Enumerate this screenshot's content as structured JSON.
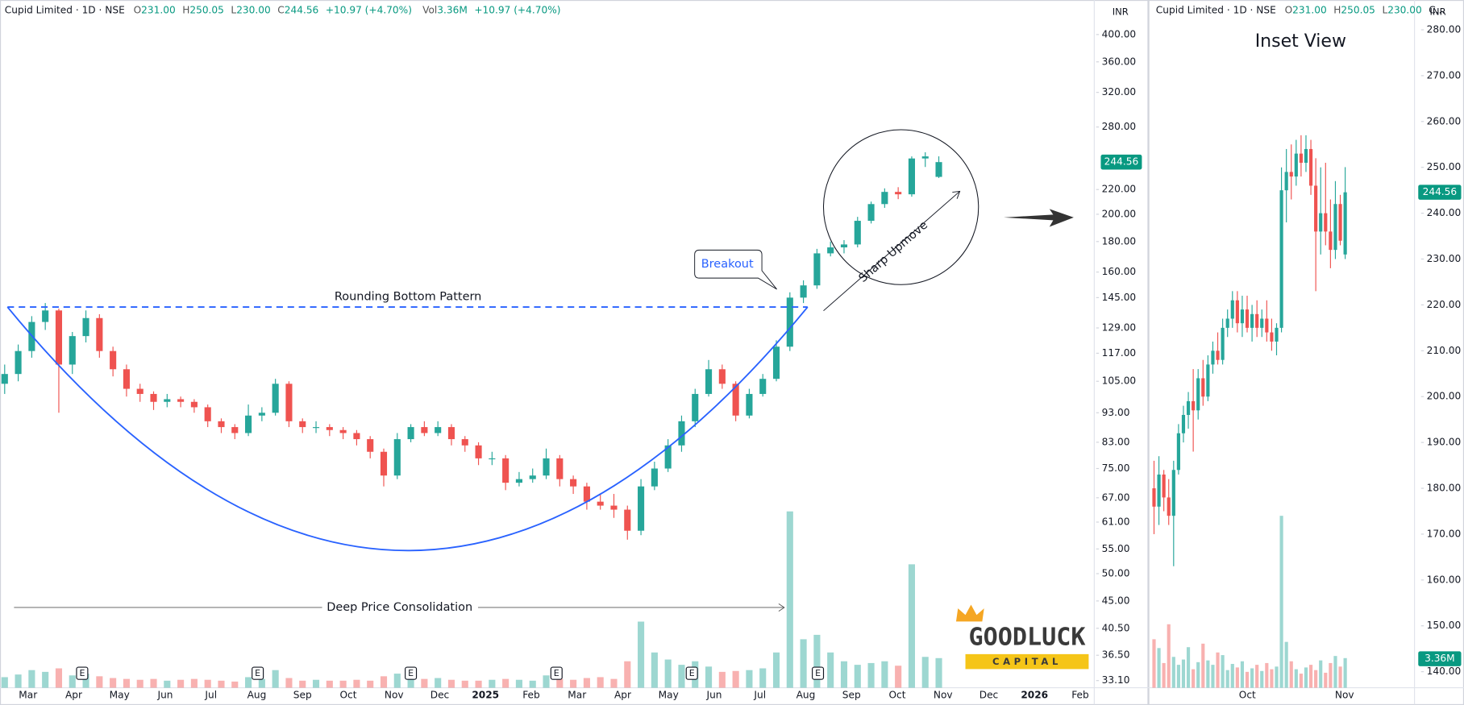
{
  "header": {
    "symbol": "Cupid Limited · 1D · NSE",
    "fields": [
      {
        "key": "O",
        "value": "231.00"
      },
      {
        "key": "H",
        "value": "250.05"
      },
      {
        "key": "L",
        "value": "230.00"
      },
      {
        "key": "C",
        "value": "244.56"
      }
    ],
    "change": "+10.97 (+4.70%)",
    "volume_key": "Vol",
    "volume": "3.36M",
    "volume_change": "+10.97 (+4.70%)"
  },
  "inset_header": {
    "symbol": "Cupid Limited · 1D · NSE",
    "fields": [
      {
        "key": "O",
        "value": "231.00"
      },
      {
        "key": "H",
        "value": "250.05"
      },
      {
        "key": "L",
        "value": "230.00"
      }
    ],
    "truncated": "C..."
  },
  "annotations": {
    "pattern": "Rounding Bottom Pattern",
    "breakout": "Breakout",
    "upmove": "Sharp Upmove",
    "consolidation": "Deep Price Consolidation",
    "inset_title": "Inset View"
  },
  "logo": {
    "name": "GOODLUCK",
    "tagline": "CAPITAL"
  },
  "chart_data": [
    {
      "type": "candlestick",
      "log_scale": true,
      "currency": "INR",
      "up_color": "#26a69a",
      "down_color": "#ef5350",
      "ylim": [
        32.2,
        457
      ],
      "yticks": [
        {
          "value": 33.1,
          "label": "33.10"
        },
        {
          "value": 36.5,
          "label": "36.50"
        },
        {
          "value": 40.5,
          "label": "40.50"
        },
        {
          "value": 45,
          "label": "45.00"
        },
        {
          "value": 50,
          "label": "50.00"
        },
        {
          "value": 55,
          "label": "55.00"
        },
        {
          "value": 61,
          "label": "61.00"
        },
        {
          "value": 67,
          "label": "67.00"
        },
        {
          "value": 75,
          "label": "75.00"
        },
        {
          "value": 83,
          "label": "83.00"
        },
        {
          "value": 93,
          "label": "93.00"
        },
        {
          "value": 105,
          "label": "105.00"
        },
        {
          "value": 117,
          "label": "117.00"
        },
        {
          "value": 129,
          "label": "129.00"
        },
        {
          "value": 145,
          "label": "145.00"
        },
        {
          "value": 160,
          "label": "160.00"
        },
        {
          "value": 180,
          "label": "180.00"
        },
        {
          "value": 200,
          "label": "200.00"
        },
        {
          "value": 220,
          "label": "220.00"
        },
        {
          "value": 280,
          "label": "280.00"
        },
        {
          "value": 320,
          "label": "320.00"
        },
        {
          "value": 360,
          "label": "360.00"
        },
        {
          "value": 400,
          "label": "400.00"
        }
      ],
      "x_labels": [
        "Mar",
        "Apr",
        "May",
        "Jun",
        "Jul",
        "Aug",
        "Sep",
        "Oct",
        "Nov",
        "Dec",
        "2025",
        "Feb",
        "Mar",
        "Apr",
        "May",
        "Jun",
        "Jul",
        "Aug",
        "Sep",
        "Oct",
        "Nov",
        "Dec",
        "2026",
        "Feb"
      ],
      "events": [
        "E",
        "E",
        "E",
        "E",
        "E",
        "E"
      ],
      "open": [
        104,
        108,
        118,
        132,
        138,
        112,
        125,
        134,
        118,
        110,
        102,
        100,
        97,
        98,
        97,
        95,
        90,
        88,
        86,
        92,
        93,
        104,
        90,
        88,
        88,
        87,
        86,
        84,
        80,
        73,
        84,
        88,
        86,
        88,
        84,
        82,
        78,
        78,
        71,
        72,
        73,
        78,
        72,
        70,
        66,
        65,
        64,
        59,
        70,
        75,
        82,
        90,
        100,
        110,
        104,
        92,
        100,
        106,
        120,
        145,
        152,
        172,
        176,
        178,
        195,
        208,
        218,
        216,
        248,
        231
      ],
      "high": [
        112,
        121,
        135,
        142,
        139,
        127,
        138,
        136,
        120,
        112,
        104,
        101,
        100,
        99,
        98,
        96,
        91,
        89,
        96,
        95,
        106,
        105,
        91,
        90,
        89,
        88,
        87,
        85,
        81,
        86,
        89,
        90,
        90,
        89,
        85,
        83,
        80,
        79,
        74,
        75,
        81,
        79,
        73,
        71,
        68,
        68,
        65,
        72,
        77,
        84,
        92,
        102,
        114,
        112,
        105,
        102,
        108,
        123,
        148,
        155,
        175,
        180,
        181,
        198,
        210,
        221,
        222,
        250,
        254,
        250.05
      ],
      "low": [
        100,
        105,
        115,
        128,
        93,
        108,
        122,
        115,
        107,
        99,
        97,
        94,
        95,
        95,
        93,
        88,
        86,
        84,
        85,
        90,
        92,
        88,
        86,
        86,
        85,
        84,
        82,
        78,
        70,
        72,
        83,
        85,
        85,
        82,
        80,
        76,
        76,
        69,
        70,
        71,
        72,
        70,
        68,
        64,
        64,
        62,
        57,
        58,
        69,
        74,
        80,
        88,
        99,
        102,
        90,
        91,
        99,
        105,
        118,
        142,
        150,
        170,
        172,
        176,
        193,
        205,
        212,
        214,
        240,
        230
      ],
      "close": [
        108,
        118,
        132,
        138,
        112,
        125,
        134,
        118,
        110,
        102,
        100,
        97,
        98,
        97,
        95,
        90,
        88,
        86,
        92,
        93,
        104,
        90,
        88,
        88,
        87,
        86,
        84,
        80,
        73,
        84,
        88,
        86,
        88,
        84,
        82,
        78,
        78,
        71,
        72,
        73,
        78,
        72,
        70,
        66,
        65,
        64,
        59,
        70,
        75,
        82,
        90,
        100,
        110,
        104,
        92,
        100,
        106,
        120,
        145,
        152,
        172,
        176,
        178,
        195,
        208,
        218,
        216,
        248,
        250,
        244.56
      ],
      "volume": [
        1.2,
        1.5,
        2.0,
        1.8,
        2.2,
        1.4,
        1.6,
        1.3,
        1.1,
        1.0,
        0.9,
        1.0,
        0.8,
        0.9,
        1.0,
        0.9,
        0.8,
        0.7,
        1.2,
        1.0,
        2.0,
        1.1,
        0.8,
        0.9,
        0.8,
        0.8,
        0.9,
        0.8,
        1.3,
        1.6,
        1.3,
        1.0,
        1.1,
        0.9,
        0.8,
        0.8,
        0.9,
        1.0,
        0.9,
        0.8,
        1.4,
        1.0,
        0.9,
        1.1,
        1.2,
        1.0,
        3.0,
        7.5,
        4.0,
        3.2,
        2.6,
        3.0,
        2.4,
        1.8,
        1.9,
        2.0,
        2.2,
        4.0,
        20.0,
        5.5,
        6.0,
        4.0,
        3.0,
        2.6,
        2.8,
        3.0,
        2.5,
        14.0,
        3.5,
        3.36
      ],
      "volume_lim": [
        0,
        78
      ],
      "last_price": {
        "value": 244.56,
        "label": "244.56"
      }
    },
    {
      "type": "candlestick",
      "log_scale": false,
      "currency": "INR",
      "up_color": "#26a69a",
      "down_color": "#ef5350",
      "ylim": [
        136.5,
        286.5
      ],
      "yticks": [
        {
          "value": 140,
          "label": "140.00"
        },
        {
          "value": 150,
          "label": "150.00"
        },
        {
          "value": 160,
          "label": "160.00"
        },
        {
          "value": 170,
          "label": "170.00"
        },
        {
          "value": 180,
          "label": "180.00"
        },
        {
          "value": 190,
          "label": "190.00"
        },
        {
          "value": 200,
          "label": "200.00"
        },
        {
          "value": 210,
          "label": "210.00"
        },
        {
          "value": 220,
          "label": "220.00"
        },
        {
          "value": 230,
          "label": "230.00"
        },
        {
          "value": 240,
          "label": "240.00"
        },
        {
          "value": 250,
          "label": "250.00"
        },
        {
          "value": 260,
          "label": "260.00"
        },
        {
          "value": 270,
          "label": "270.00"
        },
        {
          "value": 280,
          "label": "280.00"
        }
      ],
      "x_labels": [
        "Oct",
        "Nov"
      ],
      "open": [
        180,
        176,
        183,
        178,
        174,
        184,
        192,
        196,
        199,
        197,
        204,
        200,
        207,
        210,
        208,
        215,
        217,
        221,
        216,
        219,
        215,
        218,
        215,
        217,
        214,
        212,
        215,
        245,
        249,
        248,
        253,
        251,
        254,
        246,
        236,
        240,
        236,
        232,
        242,
        231
      ],
      "high": [
        186,
        187,
        184,
        182,
        186,
        194,
        198,
        201,
        206,
        206,
        208,
        209,
        212,
        214,
        217,
        219,
        223,
        223,
        222,
        222,
        220,
        221,
        219,
        221,
        217,
        216,
        250,
        254,
        255,
        256,
        257,
        257,
        256,
        252,
        250,
        251,
        243,
        247,
        244,
        250.05
      ],
      "low": [
        170,
        172,
        175,
        172,
        163,
        183,
        190,
        193,
        188,
        195,
        198,
        199,
        205,
        207,
        207,
        213,
        215,
        214,
        213,
        214,
        212,
        213,
        213,
        212,
        210,
        209,
        214,
        238,
        243,
        246,
        248,
        249,
        244,
        223,
        231,
        233,
        228,
        230,
        233,
        230
      ],
      "close": [
        176,
        183,
        178,
        174,
        184,
        192,
        196,
        199,
        197,
        204,
        200,
        207,
        210,
        208,
        215,
        217,
        221,
        216,
        219,
        215,
        218,
        215,
        217,
        214,
        212,
        215,
        245,
        249,
        248,
        253,
        251,
        254,
        246,
        236,
        240,
        236,
        232,
        242,
        234,
        244.56
      ],
      "volume": [
        5.5,
        4.5,
        2.8,
        7.2,
        3.5,
        2.6,
        3.2,
        4.6,
        2.1,
        2.9,
        5.0,
        3.1,
        2.6,
        4.0,
        3.7,
        2.0,
        2.7,
        2.3,
        3.0,
        1.8,
        2.2,
        2.6,
        1.9,
        2.8,
        2.1,
        2.4,
        19.5,
        5.2,
        3.0,
        2.1,
        1.6,
        2.3,
        2.6,
        2.0,
        3.1,
        1.7,
        2.8,
        3.6,
        2.4,
        3.36
      ],
      "volume_lim": [
        0,
        78
      ],
      "last_price": {
        "value": 244.56,
        "label": "244.56"
      },
      "volume_tag": {
        "value": 3.36,
        "label": "3.36M"
      }
    }
  ]
}
